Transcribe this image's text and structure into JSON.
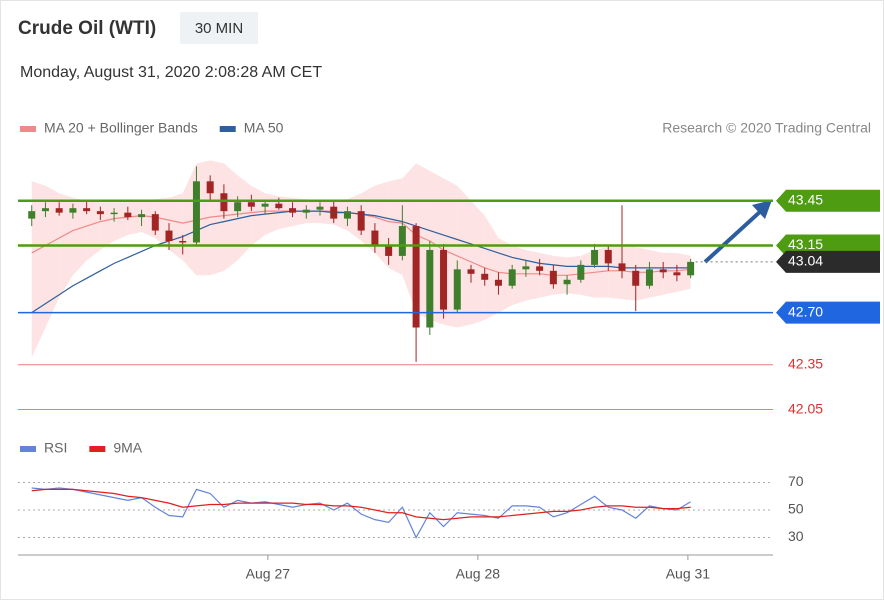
{
  "header": {
    "title": "Crude Oil (WTI)",
    "interval": "30 MIN",
    "timestamp": "Monday, August 31, 2020 2:08:28 AM CET",
    "credit": "Research © 2020 Trading Central"
  },
  "chart_data": [
    {
      "type": "candlestick",
      "x": [
        0,
        1,
        2,
        3,
        4,
        5,
        6,
        7,
        8,
        9,
        10,
        11,
        12,
        13,
        14,
        15,
        16,
        17,
        18,
        19,
        20,
        21,
        22,
        23,
        24,
        25,
        26,
        27,
        28,
        29,
        30,
        31,
        32,
        33,
        34,
        35,
        36,
        37,
        38,
        39,
        40,
        41,
        42,
        43,
        44,
        45,
        46,
        47,
        48
      ],
      "xlim": [
        -1,
        54
      ],
      "ylim": [
        41.98,
        43.79
      ],
      "candle_colors": {
        "up": "#3f7f2c",
        "down": "#a12525"
      },
      "candles": [
        [
          43.33,
          43.42,
          43.28,
          43.38
        ],
        [
          43.38,
          43.44,
          43.34,
          43.4
        ],
        [
          43.4,
          43.44,
          43.35,
          43.37
        ],
        [
          43.37,
          43.43,
          43.33,
          43.4
        ],
        [
          43.4,
          43.45,
          43.36,
          43.38
        ],
        [
          43.38,
          43.41,
          43.32,
          43.36
        ],
        [
          43.36,
          43.4,
          43.31,
          43.37
        ],
        [
          43.37,
          43.41,
          43.32,
          43.34
        ],
        [
          43.34,
          43.39,
          43.28,
          43.36
        ],
        [
          43.36,
          43.38,
          43.22,
          43.25
        ],
        [
          43.25,
          43.3,
          43.12,
          43.18
        ],
        [
          43.18,
          43.22,
          43.09,
          43.17
        ],
        [
          43.17,
          43.68,
          43.15,
          43.58
        ],
        [
          43.58,
          43.62,
          43.45,
          43.5
        ],
        [
          43.5,
          43.56,
          43.33,
          43.38
        ],
        [
          43.38,
          43.48,
          43.34,
          43.44
        ],
        [
          43.44,
          43.49,
          43.38,
          43.41
        ],
        [
          43.41,
          43.45,
          43.36,
          43.43
        ],
        [
          43.43,
          43.47,
          43.39,
          43.4
        ],
        [
          43.4,
          43.44,
          43.34,
          43.37
        ],
        [
          43.37,
          43.42,
          43.33,
          43.39
        ],
        [
          43.39,
          43.44,
          43.35,
          43.41
        ],
        [
          43.41,
          43.45,
          43.3,
          43.33
        ],
        [
          43.33,
          43.41,
          43.28,
          43.38
        ],
        [
          43.38,
          43.42,
          43.22,
          43.25
        ],
        [
          43.25,
          43.3,
          43.1,
          43.15
        ],
        [
          43.15,
          43.2,
          43.02,
          43.08
        ],
        [
          43.08,
          43.42,
          43.05,
          43.28
        ],
        [
          43.28,
          43.3,
          42.37,
          42.6
        ],
        [
          42.6,
          43.18,
          42.55,
          43.12
        ],
        [
          43.12,
          43.16,
          42.66,
          42.72
        ],
        [
          42.72,
          43.05,
          42.7,
          42.99
        ],
        [
          42.99,
          43.02,
          42.9,
          42.96
        ],
        [
          42.96,
          43.0,
          42.88,
          42.92
        ],
        [
          42.92,
          42.97,
          42.82,
          42.88
        ],
        [
          42.88,
          43.02,
          42.86,
          42.99
        ],
        [
          42.99,
          43.05,
          42.94,
          43.01
        ],
        [
          43.01,
          43.06,
          42.95,
          42.98
        ],
        [
          42.98,
          43.02,
          42.86,
          42.89
        ],
        [
          42.89,
          42.95,
          42.82,
          42.92
        ],
        [
          42.92,
          43.05,
          42.9,
          43.02
        ],
        [
          43.02,
          43.16,
          43.0,
          43.12
        ],
        [
          43.12,
          43.15,
          42.98,
          43.03
        ],
        [
          43.03,
          43.42,
          42.93,
          42.98
        ],
        [
          42.98,
          43.02,
          42.71,
          42.88
        ],
        [
          42.88,
          43.04,
          42.86,
          42.99
        ],
        [
          42.99,
          43.04,
          42.93,
          42.97
        ],
        [
          42.97,
          43.02,
          42.91,
          42.95
        ],
        [
          42.95,
          43.06,
          42.93,
          43.04
        ]
      ],
      "series": [
        {
          "name": "MA 20 + Bollinger Bands",
          "color": "#f08a8a",
          "band_color": "#fde3e3",
          "values": [
            43.1,
            43.15,
            43.2,
            43.25,
            43.28,
            43.31,
            43.33,
            43.34,
            43.35,
            43.34,
            43.32,
            43.3,
            43.32,
            43.34,
            43.35,
            43.36,
            43.37,
            43.38,
            43.38,
            43.38,
            43.38,
            43.38,
            43.38,
            43.37,
            43.36,
            43.34,
            43.31,
            43.3,
            43.22,
            43.18,
            43.12,
            43.08,
            43.04,
            43.0,
            42.97,
            42.96,
            42.96,
            42.96,
            42.95,
            42.95,
            42.96,
            42.97,
            42.98,
            42.98,
            42.97,
            42.97,
            42.98,
            42.98,
            42.99
          ],
          "upper": [
            43.58,
            43.55,
            43.5,
            43.47,
            43.45,
            43.44,
            43.44,
            43.44,
            43.45,
            43.46,
            43.47,
            43.5,
            43.7,
            43.72,
            43.7,
            43.62,
            43.55,
            43.5,
            43.48,
            43.47,
            43.46,
            43.45,
            43.45,
            43.46,
            43.5,
            43.55,
            43.58,
            43.6,
            43.7,
            43.65,
            43.6,
            43.55,
            43.45,
            43.35,
            43.2,
            43.15,
            43.12,
            43.1,
            43.08,
            43.07,
            43.08,
            43.12,
            43.14,
            43.15,
            43.14,
            43.12,
            43.1,
            43.1,
            43.08
          ],
          "lower": [
            42.4,
            42.6,
            42.8,
            42.95,
            43.05,
            43.12,
            43.18,
            43.22,
            43.24,
            43.2,
            43.12,
            43.05,
            42.95,
            42.95,
            42.98,
            43.05,
            43.15,
            43.22,
            43.26,
            43.28,
            43.3,
            43.3,
            43.29,
            43.25,
            43.18,
            43.1,
            43.0,
            42.95,
            42.7,
            42.65,
            42.62,
            42.6,
            42.62,
            42.65,
            42.7,
            42.75,
            42.78,
            42.8,
            42.82,
            42.83,
            42.82,
            42.8,
            42.8,
            42.79,
            42.78,
            42.8,
            42.82,
            42.84,
            42.86
          ]
        },
        {
          "name": "MA 50",
          "color": "#2f5f9e",
          "values": [
            42.7,
            42.76,
            42.82,
            42.88,
            42.93,
            42.98,
            43.03,
            43.07,
            43.11,
            43.15,
            43.18,
            43.21,
            43.25,
            43.29,
            43.31,
            43.33,
            43.35,
            43.36,
            43.37,
            43.38,
            43.38,
            43.38,
            43.37,
            43.37,
            43.36,
            43.35,
            43.33,
            43.31,
            43.28,
            43.25,
            43.22,
            43.19,
            43.16,
            43.13,
            43.1,
            43.07,
            43.05,
            43.03,
            43.02,
            43.01,
            43.01,
            43.01,
            43.01,
            43.0,
            43.0,
            43.0,
            43.0,
            43.0,
            43.0
          ]
        }
      ],
      "levels": {
        "values": [
          43.45,
          43.15,
          43.04,
          42.7,
          42.35,
          42.05
        ],
        "value_labels": [
          "43.45",
          "43.15",
          "43.04",
          "42.70",
          "42.35",
          "42.05"
        ],
        "colors": [
          "#4e9c12",
          "#4e9c12",
          "#2b2b2b",
          "#1f66e0",
          "#f07a7a",
          "#f07a7a"
        ],
        "line_styles": [
          "solid",
          "solid",
          "dotted",
          "solid",
          "solid",
          "solid"
        ],
        "label_styles": [
          "box",
          "box",
          "box",
          "box",
          "text",
          "text"
        ]
      }
    },
    {
      "type": "line",
      "x": [
        0,
        1,
        2,
        3,
        4,
        5,
        6,
        7,
        8,
        9,
        10,
        11,
        12,
        13,
        14,
        15,
        16,
        17,
        18,
        19,
        20,
        21,
        22,
        23,
        24,
        25,
        26,
        27,
        28,
        29,
        30,
        31,
        32,
        33,
        34,
        35,
        36,
        37,
        38,
        39,
        40,
        41,
        42,
        43,
        44,
        45,
        46,
        47,
        48
      ],
      "xlim": [
        -1,
        54
      ],
      "xticks": [
        {
          "value": 17.2,
          "label": "Aug 27"
        },
        {
          "value": 32.5,
          "label": "Aug 28"
        },
        {
          "value": 47.8,
          "label": "Aug 31"
        }
      ],
      "ylim": [
        20,
        75
      ],
      "yticks": [
        30,
        50,
        70
      ],
      "grid": true,
      "series": [
        {
          "name": "RSI",
          "color": "#6384d8",
          "values": [
            66,
            65,
            66,
            65,
            63,
            61,
            59,
            57,
            59,
            52,
            46,
            45,
            65,
            62,
            52,
            57,
            55,
            56,
            54,
            52,
            54,
            55,
            50,
            55,
            47,
            43,
            41,
            52,
            30,
            48,
            38,
            48,
            47,
            46,
            44,
            53,
            53,
            52,
            45,
            48,
            54,
            60,
            52,
            50,
            44,
            53,
            51,
            50,
            56
          ]
        },
        {
          "name": "9MA",
          "color": "#e02020",
          "values": [
            64,
            65,
            65,
            65,
            64,
            63,
            62,
            60,
            59,
            57,
            55,
            52,
            53,
            54,
            54,
            55,
            55,
            55,
            55,
            55,
            54,
            54,
            53,
            53,
            52,
            50,
            48,
            48,
            45,
            44,
            43,
            44,
            45,
            45,
            45,
            46,
            47,
            48,
            49,
            49,
            50,
            52,
            53,
            53,
            52,
            52,
            51,
            51,
            52
          ]
        }
      ]
    }
  ]
}
